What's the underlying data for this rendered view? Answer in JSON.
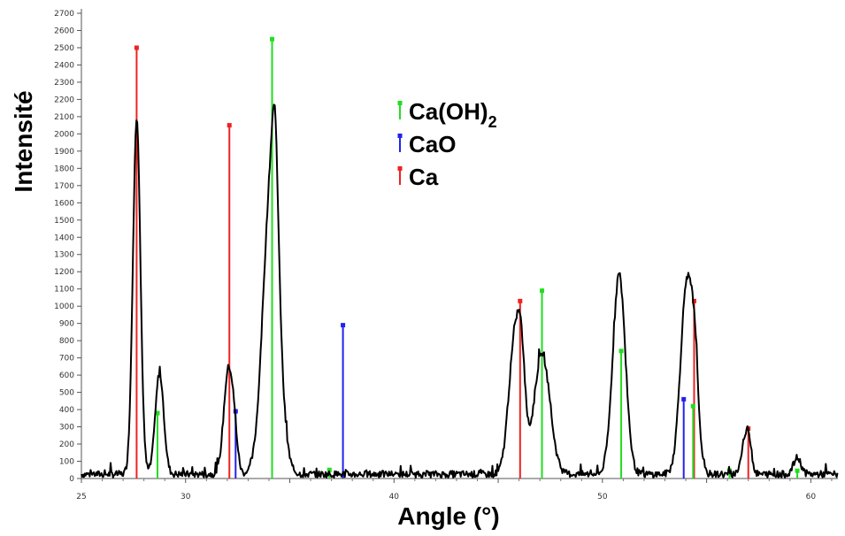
{
  "chart_data": {
    "type": "line",
    "title": "",
    "xlabel": "Angle (°)",
    "ylabel": "Intensité",
    "xlim": [
      25,
      61.3
    ],
    "ylim": [
      0,
      2700
    ],
    "x_ticks": [
      25,
      30,
      35,
      40,
      45,
      50,
      55,
      60
    ],
    "x_tick_labels": [
      "25",
      "30",
      "",
      "40",
      "",
      "50",
      "",
      "60"
    ],
    "y_ticks": [
      0,
      100,
      200,
      300,
      400,
      500,
      600,
      700,
      800,
      900,
      1000,
      1100,
      1200,
      1300,
      1400,
      1500,
      1600,
      1700,
      1800,
      1900,
      2000,
      2100,
      2200,
      2300,
      2400,
      2500,
      2600,
      2700
    ],
    "grid": false,
    "legend": {
      "placement": "top-center",
      "entries": [
        {
          "name": "Ca(OH)",
          "subscript": "2",
          "color": "#22dd22"
        },
        {
          "name": "CaO",
          "subscript": "",
          "color": "#2222ee"
        },
        {
          "name": "Ca",
          "subscript": "",
          "color": "#ee2222"
        }
      ]
    },
    "pattern": {
      "color": "#000000",
      "baseline": 25,
      "peaks": [
        {
          "x": 27.65,
          "height": 2060,
          "width": 0.18
        },
        {
          "x": 28.75,
          "height": 590,
          "width": 0.2
        },
        {
          "x": 32.05,
          "height": 600,
          "width": 0.22
        },
        {
          "x": 32.35,
          "height": 150,
          "width": 0.15
        },
        {
          "x": 34.1,
          "height": 1680,
          "width": 0.38
        },
        {
          "x": 34.3,
          "height": 620,
          "width": 0.15
        },
        {
          "x": 45.75,
          "height": 690,
          "width": 0.28
        },
        {
          "x": 46.1,
          "height": 540,
          "width": 0.2
        },
        {
          "x": 47.1,
          "height": 700,
          "width": 0.38
        },
        {
          "x": 50.8,
          "height": 1160,
          "width": 0.3
        },
        {
          "x": 54.05,
          "height": 1100,
          "width": 0.3
        },
        {
          "x": 54.45,
          "height": 400,
          "width": 0.18
        },
        {
          "x": 56.85,
          "height": 190,
          "width": 0.18
        },
        {
          "x": 57.05,
          "height": 130,
          "width": 0.13
        },
        {
          "x": 59.35,
          "height": 95,
          "width": 0.18
        }
      ]
    },
    "reference_lines": [
      {
        "phase": "Ca",
        "color": "#ee2222",
        "x": 27.65,
        "y": 2500
      },
      {
        "phase": "Ca",
        "color": "#ee2222",
        "x": 32.1,
        "y": 2050
      },
      {
        "phase": "Ca",
        "color": "#ee2222",
        "x": 46.05,
        "y": 1030
      },
      {
        "phase": "Ca",
        "color": "#ee2222",
        "x": 54.4,
        "y": 1030
      },
      {
        "phase": "Ca",
        "color": "#ee2222",
        "x": 57.0,
        "y": 290
      },
      {
        "phase": "Ca(OH)2",
        "color": "#22dd22",
        "x": 28.65,
        "y": 380
      },
      {
        "phase": "Ca(OH)2",
        "color": "#22dd22",
        "x": 34.15,
        "y": 2550
      },
      {
        "phase": "Ca(OH)2",
        "color": "#22dd22",
        "x": 36.9,
        "y": 50
      },
      {
        "phase": "Ca(OH)2",
        "color": "#22dd22",
        "x": 47.1,
        "y": 1090
      },
      {
        "phase": "Ca(OH)2",
        "color": "#22dd22",
        "x": 50.9,
        "y": 740
      },
      {
        "phase": "Ca(OH)2",
        "color": "#22dd22",
        "x": 54.35,
        "y": 420
      },
      {
        "phase": "Ca(OH)2",
        "color": "#22dd22",
        "x": 56.1,
        "y": 45
      },
      {
        "phase": "Ca(OH)2",
        "color": "#22dd22",
        "x": 59.35,
        "y": 45
      },
      {
        "phase": "CaO",
        "color": "#2222ee",
        "x": 32.4,
        "y": 390
      },
      {
        "phase": "CaO",
        "color": "#2222ee",
        "x": 37.55,
        "y": 890
      },
      {
        "phase": "CaO",
        "color": "#2222ee",
        "x": 53.9,
        "y": 460
      }
    ]
  }
}
